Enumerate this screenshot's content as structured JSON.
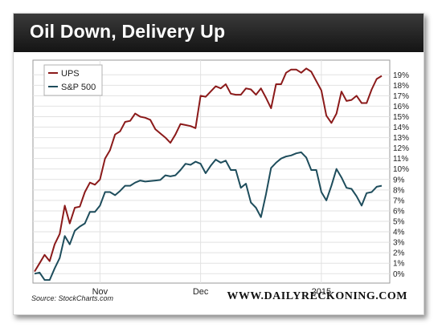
{
  "title": "Oil Down, Delivery Up",
  "source": "Source: StockCharts.com",
  "brand": "WWW.DAILYRECKONING.COM",
  "colors": {
    "ups": "#8b1a1a",
    "sp500": "#1e4d5c",
    "title_bg": "#1e1e1e"
  },
  "chart_data": {
    "type": "line",
    "title": "",
    "xlabel": "",
    "ylabel": "",
    "ylim": [
      0,
      19
    ],
    "y_ticks": [
      "0%",
      "1%",
      "2%",
      "3%",
      "4%",
      "5%",
      "6%",
      "7%",
      "8%",
      "9%",
      "10%",
      "11%",
      "12%",
      "13%",
      "14%",
      "15%",
      "16%",
      "17%",
      "18%",
      "19%"
    ],
    "x_tick_labels": [
      {
        "index": 13,
        "label": "Nov"
      },
      {
        "index": 33,
        "label": "Dec"
      },
      {
        "index": 57,
        "label": "2015"
      }
    ],
    "legend": {
      "placement": "top-left"
    },
    "grid": true,
    "series": [
      {
        "name": "UPS",
        "values": [
          0.2,
          1.0,
          1.8,
          1.2,
          2.8,
          3.8,
          6.5,
          4.8,
          6.3,
          6.4,
          7.8,
          8.7,
          8.5,
          9.0,
          11.0,
          11.8,
          13.3,
          13.6,
          14.5,
          14.6,
          15.3,
          15.0,
          14.9,
          14.7,
          13.8,
          13.4,
          13.0,
          12.5,
          13.3,
          14.3,
          14.2,
          14.1,
          13.9,
          17.0,
          16.9,
          17.4,
          17.9,
          17.7,
          18.1,
          17.2,
          17.1,
          17.1,
          17.7,
          17.6,
          17.1,
          17.7,
          16.8,
          15.8,
          18.1,
          18.1,
          19.2,
          19.5,
          19.5,
          19.2,
          19.6,
          19.3,
          18.4,
          17.5,
          15.1,
          14.4,
          15.3,
          17.4,
          16.5,
          16.6,
          17.0,
          16.3,
          16.3,
          17.6,
          18.6,
          18.9
        ]
      },
      {
        "name": "S&P 500",
        "values": [
          0.0,
          0.1,
          -0.6,
          -0.6,
          0.5,
          1.5,
          3.6,
          2.8,
          4.1,
          4.5,
          4.8,
          5.9,
          5.9,
          6.5,
          7.8,
          7.8,
          7.5,
          7.9,
          8.4,
          8.4,
          8.7,
          8.9,
          8.8,
          8.85,
          8.9,
          8.95,
          9.4,
          9.3,
          9.4,
          9.9,
          10.5,
          10.4,
          10.7,
          10.5,
          9.6,
          10.3,
          10.9,
          10.6,
          10.8,
          9.9,
          9.9,
          8.2,
          8.6,
          6.8,
          6.3,
          5.4,
          7.6,
          10.1,
          10.6,
          11.0,
          11.2,
          11.3,
          11.5,
          11.6,
          11.1,
          9.9,
          9.9,
          7.8,
          7.0,
          8.4,
          10.0,
          9.2,
          8.2,
          8.1,
          7.4,
          6.5,
          7.7,
          7.8,
          8.3,
          8.4
        ]
      }
    ]
  }
}
